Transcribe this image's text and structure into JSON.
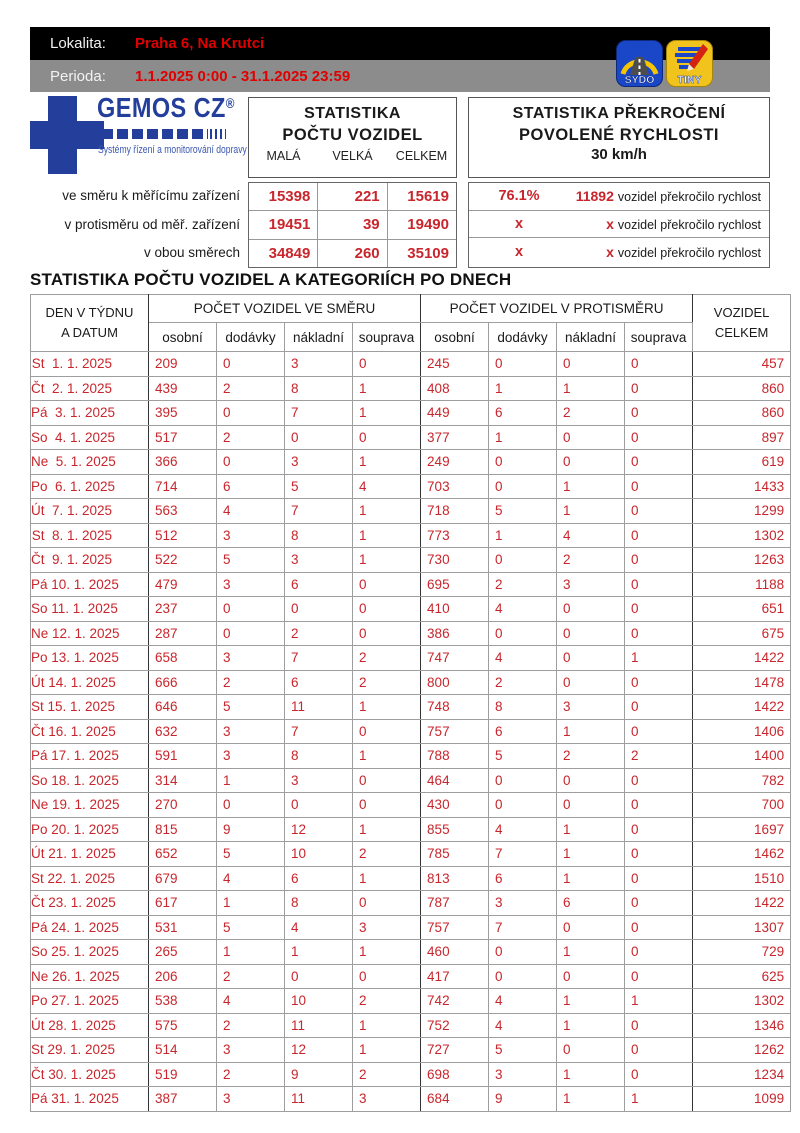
{
  "colors": {
    "accent_red": "#c8262c",
    "header_red": "#e00000",
    "logo_blue": "#233e9b",
    "bar_gray": "#8c8c8c"
  },
  "header": {
    "lokalita_label": "Lokalita:",
    "lokalita_value": "Praha 6, Na Krutci",
    "perioda_label": "Perioda:",
    "perioda_value": "1.1.2025 0:00 - 31.1.2025 23:59",
    "sydo_label": "SYDO",
    "tiny_label": "TINY"
  },
  "logo": {
    "title": "GEMOS CZ",
    "reg": "®",
    "tagline": "Systémy řízení a monitorování dopravy"
  },
  "stats_left": {
    "line1": "STATISTIKA",
    "line2": "POČTU VOZIDEL",
    "cols": [
      "MALÁ",
      "VELKÁ",
      "CELKEM"
    ]
  },
  "stats_right": {
    "line1": "STATISTIKA PŘEKROČENÍ",
    "line2": "POVOLENÉ RYCHLOSTI",
    "line3": "30 km/h"
  },
  "summary": {
    "rows": [
      {
        "label": "ve směru k měřícímu zařízení",
        "mala": "15398",
        "velka": "221",
        "celkem": "15619",
        "pct": "76.1%",
        "count": "11892",
        "suffix": "vozidel překročilo rychlost"
      },
      {
        "label": "v protisměru od měř. zařízení",
        "mala": "19451",
        "velka": "39",
        "celkem": "19490",
        "pct": "x",
        "count": "x",
        "suffix": "vozidel překročilo rychlost"
      },
      {
        "label": "v obou směrech",
        "mala": "34849",
        "velka": "260",
        "celkem": "35109",
        "pct": "x",
        "count": "x",
        "suffix": "vozidel překročilo rychlost"
      }
    ]
  },
  "table": {
    "title": "STATISTIKA POČTU VOZIDEL A KATEGORIÍCH PO DNECH",
    "day_header": [
      "DEN V TÝDNU",
      "A DATUM"
    ],
    "group_smer": "POČET VOZIDEL VE SMĚRU",
    "group_protismer": "POČET VOZIDEL V PROTISMĚRU",
    "subcols": [
      "osobní",
      "dodávky",
      "nákladní",
      "souprava"
    ],
    "total_header": [
      "VOZIDEL",
      "CELKEM"
    ],
    "rows": [
      {
        "date": "St  1. 1. 2025",
        "sm": [
          209,
          0,
          3,
          0
        ],
        "ps": [
          245,
          0,
          0,
          0
        ],
        "total": 457
      },
      {
        "date": "Čt  2. 1. 2025",
        "sm": [
          439,
          2,
          8,
          1
        ],
        "ps": [
          408,
          1,
          1,
          0
        ],
        "total": 860
      },
      {
        "date": "Pá  3. 1. 2025",
        "sm": [
          395,
          0,
          7,
          1
        ],
        "ps": [
          449,
          6,
          2,
          0
        ],
        "total": 860
      },
      {
        "date": "So  4. 1. 2025",
        "sm": [
          517,
          2,
          0,
          0
        ],
        "ps": [
          377,
          1,
          0,
          0
        ],
        "total": 897
      },
      {
        "date": "Ne  5. 1. 2025",
        "sm": [
          366,
          0,
          3,
          1
        ],
        "ps": [
          249,
          0,
          0,
          0
        ],
        "total": 619
      },
      {
        "date": "Po  6. 1. 2025",
        "sm": [
          714,
          6,
          5,
          4
        ],
        "ps": [
          703,
          0,
          1,
          0
        ],
        "total": 1433
      },
      {
        "date": "Út  7. 1. 2025",
        "sm": [
          563,
          4,
          7,
          1
        ],
        "ps": [
          718,
          5,
          1,
          0
        ],
        "total": 1299
      },
      {
        "date": "St  8. 1. 2025",
        "sm": [
          512,
          3,
          8,
          1
        ],
        "ps": [
          773,
          1,
          4,
          0
        ],
        "total": 1302
      },
      {
        "date": "Čt  9. 1. 2025",
        "sm": [
          522,
          5,
          3,
          1
        ],
        "ps": [
          730,
          0,
          2,
          0
        ],
        "total": 1263
      },
      {
        "date": "Pá 10. 1. 2025",
        "sm": [
          479,
          3,
          6,
          0
        ],
        "ps": [
          695,
          2,
          3,
          0
        ],
        "total": 1188
      },
      {
        "date": "So 11. 1. 2025",
        "sm": [
          237,
          0,
          0,
          0
        ],
        "ps": [
          410,
          4,
          0,
          0
        ],
        "total": 651
      },
      {
        "date": "Ne 12. 1. 2025",
        "sm": [
          287,
          0,
          2,
          0
        ],
        "ps": [
          386,
          0,
          0,
          0
        ],
        "total": 675
      },
      {
        "date": "Po 13. 1. 2025",
        "sm": [
          658,
          3,
          7,
          2
        ],
        "ps": [
          747,
          4,
          0,
          1
        ],
        "total": 1422
      },
      {
        "date": "Út 14. 1. 2025",
        "sm": [
          666,
          2,
          6,
          2
        ],
        "ps": [
          800,
          2,
          0,
          0
        ],
        "total": 1478
      },
      {
        "date": "St 15. 1. 2025",
        "sm": [
          646,
          5,
          11,
          1
        ],
        "ps": [
          748,
          8,
          3,
          0
        ],
        "total": 1422
      },
      {
        "date": "Čt 16. 1. 2025",
        "sm": [
          632,
          3,
          7,
          0
        ],
        "ps": [
          757,
          6,
          1,
          0
        ],
        "total": 1406
      },
      {
        "date": "Pá 17. 1. 2025",
        "sm": [
          591,
          3,
          8,
          1
        ],
        "ps": [
          788,
          5,
          2,
          2
        ],
        "total": 1400
      },
      {
        "date": "So 18. 1. 2025",
        "sm": [
          314,
          1,
          3,
          0
        ],
        "ps": [
          464,
          0,
          0,
          0
        ],
        "total": 782
      },
      {
        "date": "Ne 19. 1. 2025",
        "sm": [
          270,
          0,
          0,
          0
        ],
        "ps": [
          430,
          0,
          0,
          0
        ],
        "total": 700
      },
      {
        "date": "Po 20. 1. 2025",
        "sm": [
          815,
          9,
          12,
          1
        ],
        "ps": [
          855,
          4,
          1,
          0
        ],
        "total": 1697
      },
      {
        "date": "Út 21. 1. 2025",
        "sm": [
          652,
          5,
          10,
          2
        ],
        "ps": [
          785,
          7,
          1,
          0
        ],
        "total": 1462
      },
      {
        "date": "St 22. 1. 2025",
        "sm": [
          679,
          4,
          6,
          1
        ],
        "ps": [
          813,
          6,
          1,
          0
        ],
        "total": 1510
      },
      {
        "date": "Čt 23. 1. 2025",
        "sm": [
          617,
          1,
          8,
          0
        ],
        "ps": [
          787,
          3,
          6,
          0
        ],
        "total": 1422
      },
      {
        "date": "Pá 24. 1. 2025",
        "sm": [
          531,
          5,
          4,
          3
        ],
        "ps": [
          757,
          7,
          0,
          0
        ],
        "total": 1307
      },
      {
        "date": "So 25. 1. 2025",
        "sm": [
          265,
          1,
          1,
          1
        ],
        "ps": [
          460,
          0,
          1,
          0
        ],
        "total": 729
      },
      {
        "date": "Ne 26. 1. 2025",
        "sm": [
          206,
          2,
          0,
          0
        ],
        "ps": [
          417,
          0,
          0,
          0
        ],
        "total": 625
      },
      {
        "date": "Po 27. 1. 2025",
        "sm": [
          538,
          4,
          10,
          2
        ],
        "ps": [
          742,
          4,
          1,
          1
        ],
        "total": 1302
      },
      {
        "date": "Út 28. 1. 2025",
        "sm": [
          575,
          2,
          11,
          1
        ],
        "ps": [
          752,
          4,
          1,
          0
        ],
        "total": 1346
      },
      {
        "date": "St 29. 1. 2025",
        "sm": [
          514,
          3,
          12,
          1
        ],
        "ps": [
          727,
          5,
          0,
          0
        ],
        "total": 1262
      },
      {
        "date": "Čt 30. 1. 2025",
        "sm": [
          519,
          2,
          9,
          2
        ],
        "ps": [
          698,
          3,
          1,
          0
        ],
        "total": 1234
      },
      {
        "date": "Pá 31. 1. 2025",
        "sm": [
          387,
          3,
          11,
          3
        ],
        "ps": [
          684,
          9,
          1,
          1
        ],
        "total": 1099
      }
    ]
  }
}
